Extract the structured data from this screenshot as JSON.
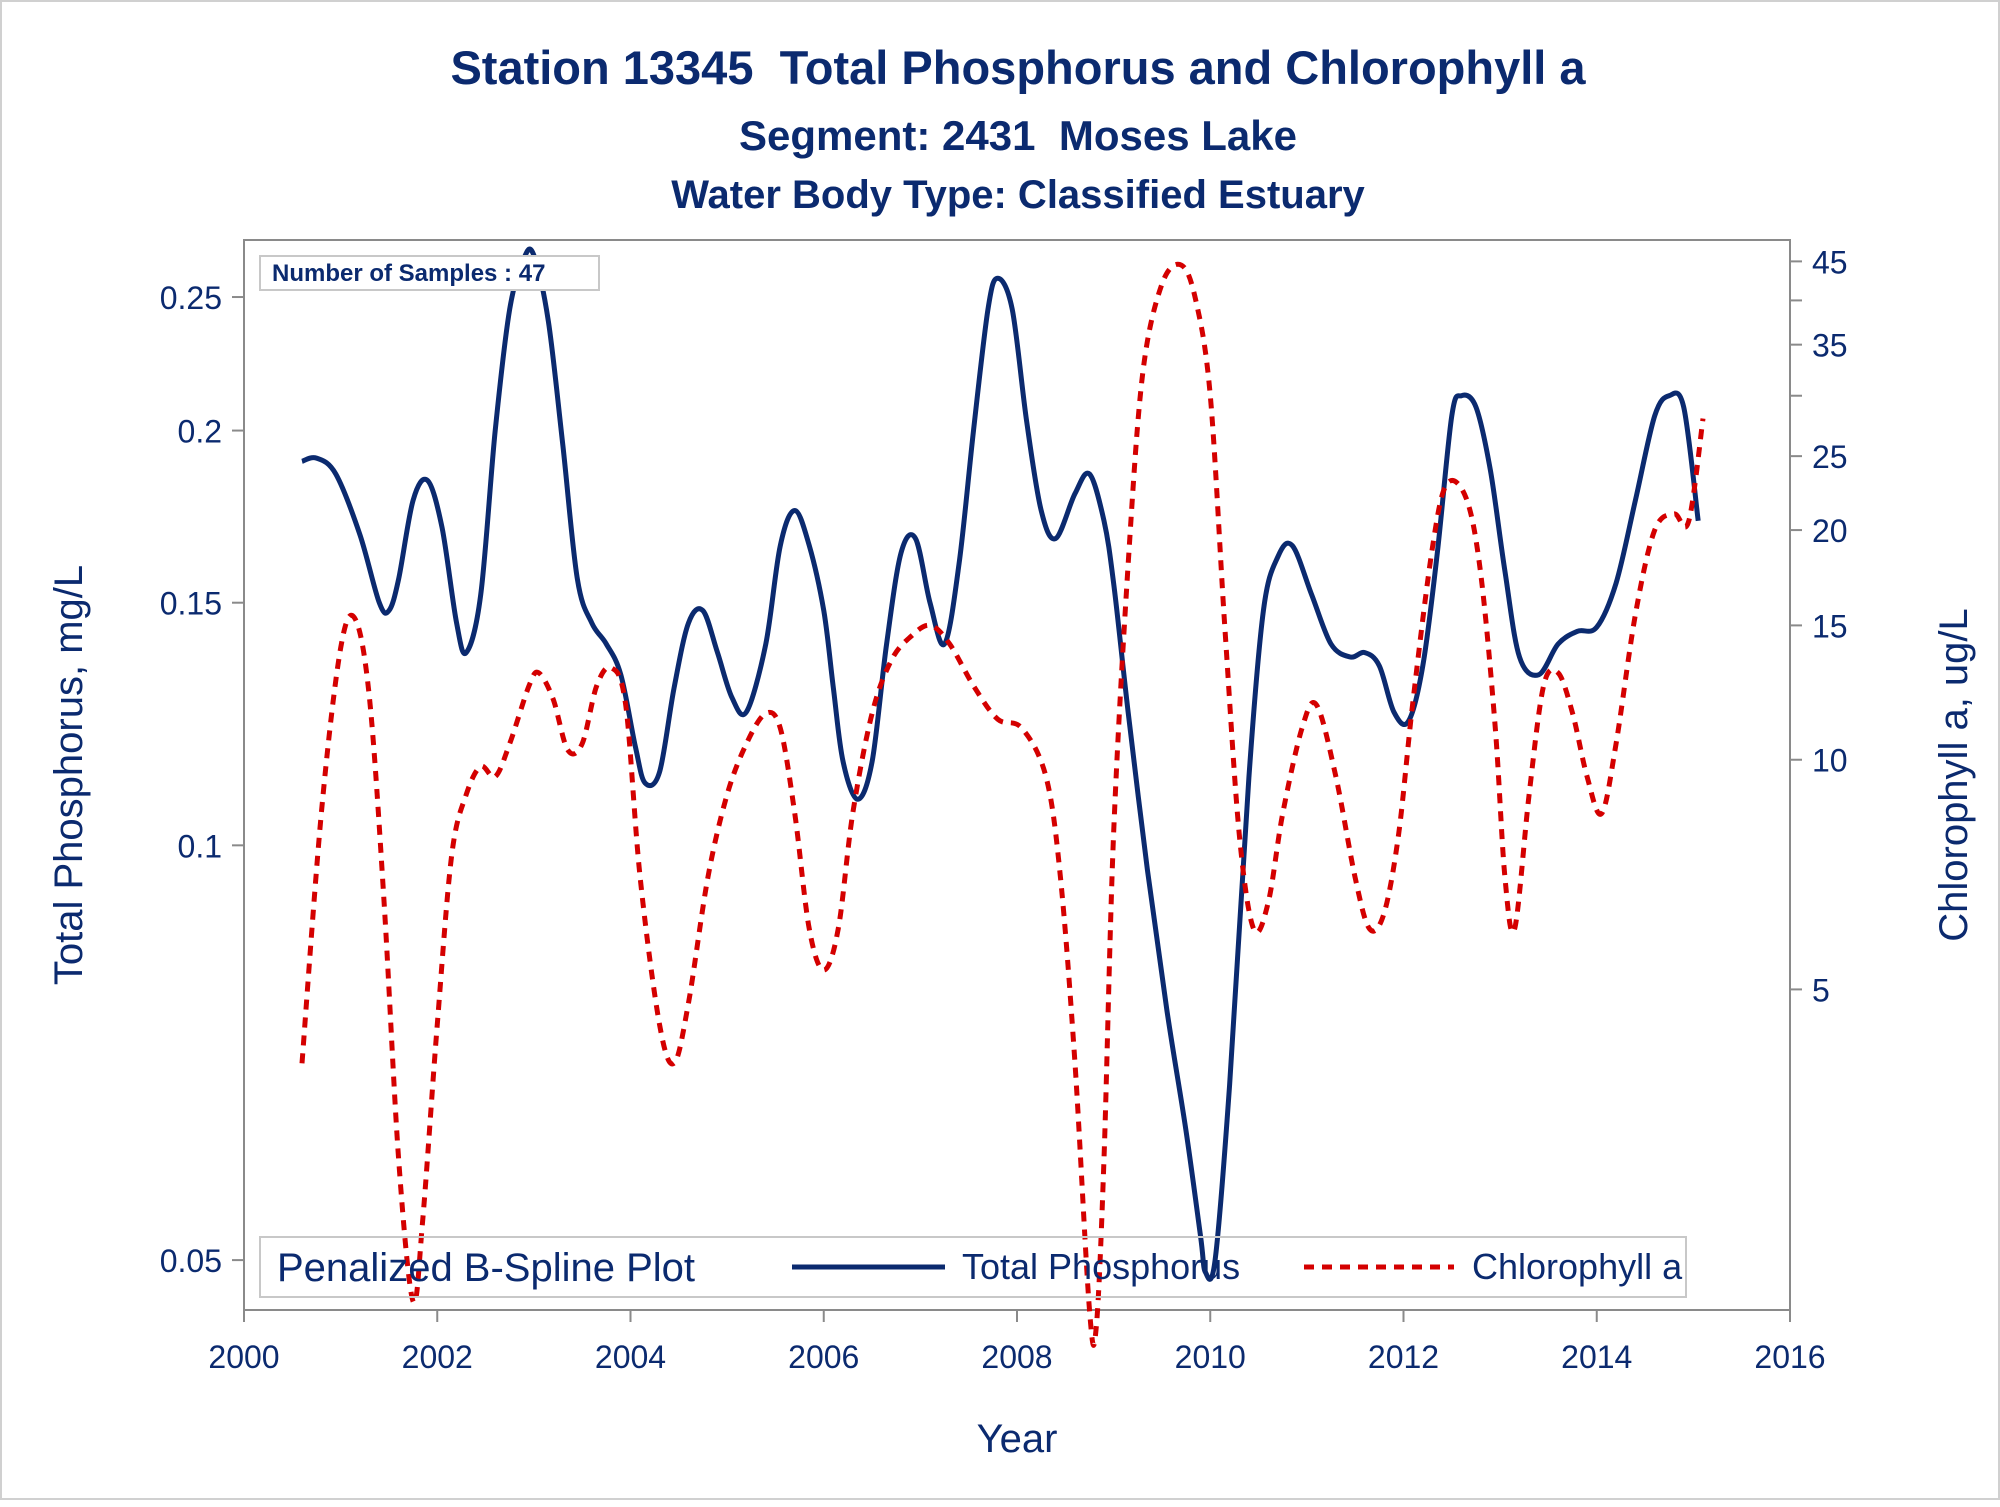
{
  "colors": {
    "navy": "#0b2a6f",
    "red": "#d40000",
    "axis": "#8a8a8a",
    "legend_border": "#c8c8c8"
  },
  "chart_data": {
    "type": "line",
    "title": "Station 13345  Total Phosphorus and Chlorophyll a",
    "subtitle1": "Segment: 2431  Moses Lake",
    "subtitle2": "Water Body Type: Classified Estuary",
    "xlabel": "Year",
    "ylabel": "Total Phosphorus, mg/L",
    "y2label": "Chlorophyll a, ug/L",
    "xlim": [
      2000,
      2016
    ],
    "ylim": [
      0.046,
      0.275
    ],
    "y_scale": "log",
    "y2lim": [
      1.9,
      48
    ],
    "y2_scale": "log",
    "x_ticks": [
      2000,
      2002,
      2004,
      2006,
      2008,
      2010,
      2012,
      2014,
      2016
    ],
    "x_tick_labels": [
      "2000",
      "2002",
      "2004",
      "2006",
      "2008",
      "2010",
      "2012",
      "2014",
      "2016"
    ],
    "y_ticks": [
      0.05,
      0.1,
      0.15,
      0.2,
      0.25
    ],
    "y_tick_labels": [
      "0.05",
      "0.1",
      "0.15",
      "0.2",
      "0.25"
    ],
    "y2_ticks": [
      5,
      10,
      15,
      20,
      25,
      30,
      35,
      40,
      45
    ],
    "y2_tick_labels": [
      "5",
      "10",
      "15",
      "20",
      "25",
      "",
      "35",
      "",
      "45"
    ],
    "annotation": "Number of Samples : 47",
    "legend_title": "Penalized B-Spline Plot",
    "legend_position": "bottom inside",
    "grid": false,
    "series": [
      {
        "name": "Total Phosphorus",
        "axis": "left",
        "style": "solid",
        "color": "#0b2a6f",
        "x": [
          2000.6,
          2000.75,
          2000.95,
          2001.2,
          2001.4,
          2001.5,
          2001.6,
          2001.75,
          2001.9,
          2002.05,
          2002.2,
          2002.3,
          2002.45,
          2002.6,
          2002.75,
          2002.9,
          2003.0,
          2003.15,
          2003.3,
          2003.45,
          2003.6,
          2003.75,
          2003.9,
          2004.05,
          2004.15,
          2004.3,
          2004.45,
          2004.6,
          2004.75,
          2004.9,
          2005.05,
          2005.2,
          2005.4,
          2005.55,
          2005.7,
          2005.85,
          2006.0,
          2006.1,
          2006.2,
          2006.35,
          2006.5,
          2006.65,
          2006.8,
          2006.95,
          2007.1,
          2007.25,
          2007.4,
          2007.55,
          2007.7,
          2007.8,
          2007.95,
          2008.1,
          2008.25,
          2008.4,
          2008.6,
          2008.75,
          2008.9,
          2009.0,
          2009.15,
          2009.35,
          2009.55,
          2009.75,
          2009.9,
          2009.95,
          2010.05,
          2010.2,
          2010.4,
          2010.55,
          2010.7,
          2010.85,
          2011.05,
          2011.25,
          2011.45,
          2011.6,
          2011.75,
          2011.9,
          2012.05,
          2012.2,
          2012.35,
          2012.5,
          2012.6,
          2012.75,
          2012.9,
          2013.05,
          2013.2,
          2013.4,
          2013.6,
          2013.8,
          2014.0,
          2014.2,
          2014.4,
          2014.6,
          2014.75,
          2014.9,
          2015.05
        ],
        "y": [
          0.19,
          0.191,
          0.186,
          0.168,
          0.15,
          0.148,
          0.156,
          0.178,
          0.184,
          0.17,
          0.145,
          0.138,
          0.152,
          0.2,
          0.245,
          0.267,
          0.268,
          0.24,
          0.195,
          0.156,
          0.145,
          0.14,
          0.133,
          0.118,
          0.111,
          0.113,
          0.13,
          0.145,
          0.148,
          0.138,
          0.128,
          0.125,
          0.14,
          0.165,
          0.175,
          0.165,
          0.148,
          0.13,
          0.115,
          0.108,
          0.115,
          0.14,
          0.163,
          0.167,
          0.15,
          0.14,
          0.16,
          0.2,
          0.245,
          0.258,
          0.245,
          0.203,
          0.175,
          0.167,
          0.18,
          0.186,
          0.172,
          0.155,
          0.125,
          0.096,
          0.076,
          0.062,
          0.052,
          0.049,
          0.05,
          0.067,
          0.112,
          0.148,
          0.162,
          0.165,
          0.152,
          0.14,
          0.137,
          0.138,
          0.135,
          0.125,
          0.123,
          0.135,
          0.163,
          0.205,
          0.212,
          0.208,
          0.187,
          0.158,
          0.137,
          0.133,
          0.14,
          0.143,
          0.144,
          0.155,
          0.178,
          0.205,
          0.212,
          0.208,
          0.172
        ]
      },
      {
        "name": "Chlorophyll a",
        "axis": "right",
        "style": "dashed",
        "color": "#d40000",
        "x": [
          2000.6,
          2000.8,
          2001.0,
          2001.15,
          2001.3,
          2001.45,
          2001.6,
          2001.75,
          2001.85,
          2002.0,
          2002.15,
          2002.3,
          2002.45,
          2002.6,
          2002.75,
          2002.95,
          2003.05,
          2003.2,
          2003.35,
          2003.5,
          2003.65,
          2003.8,
          2003.95,
          2004.1,
          2004.3,
          2004.45,
          2004.6,
          2004.8,
          2005.0,
          2005.2,
          2005.4,
          2005.55,
          2005.7,
          2005.85,
          2006.0,
          2006.15,
          2006.3,
          2006.5,
          2006.7,
          2006.9,
          2007.1,
          2007.3,
          2007.55,
          2007.8,
          2008.05,
          2008.3,
          2008.45,
          2008.6,
          2008.75,
          2008.82,
          2008.9,
          2009.0,
          2009.15,
          2009.3,
          2009.5,
          2009.7,
          2009.85,
          2010.0,
          2010.15,
          2010.3,
          2010.45,
          2010.6,
          2010.75,
          2010.95,
          2011.1,
          2011.3,
          2011.5,
          2011.65,
          2011.8,
          2011.95,
          2012.1,
          2012.3,
          2012.45,
          2012.65,
          2012.8,
          2012.95,
          2013.05,
          2013.15,
          2013.3,
          2013.45,
          2013.6,
          2013.75,
          2013.9,
          2014.05,
          2014.2,
          2014.4,
          2014.6,
          2014.8,
          2014.95,
          2015.1
        ],
        "y": [
          4.0,
          8.5,
          14.0,
          15.3,
          12.0,
          6.5,
          3.0,
          1.95,
          2.5,
          4.5,
          7.5,
          9.0,
          9.8,
          9.5,
          10.5,
          12.5,
          13.0,
          12.0,
          10.3,
          10.5,
          12.5,
          13.2,
          11.8,
          7.0,
          4.5,
          4.0,
          4.8,
          7.0,
          9.0,
          10.5,
          11.5,
          11.0,
          8.5,
          6.0,
          5.3,
          6.0,
          8.5,
          11.5,
          13.5,
          14.5,
          15.0,
          14.2,
          12.5,
          11.3,
          11.0,
          9.5,
          7.0,
          4.0,
          1.9,
          1.8,
          3.0,
          8.0,
          18.0,
          32.0,
          42.0,
          44.5,
          40.0,
          30.0,
          15.0,
          8.0,
          6.0,
          6.5,
          8.5,
          11.0,
          11.8,
          9.5,
          7.0,
          6.0,
          6.3,
          8.0,
          12.0,
          19.0,
          23.0,
          22.0,
          17.5,
          11.0,
          7.0,
          6.0,
          9.0,
          12.5,
          13.0,
          11.5,
          9.5,
          8.5,
          10.5,
          15.5,
          20.0,
          21.0,
          20.5,
          28.0
        ]
      }
    ]
  }
}
